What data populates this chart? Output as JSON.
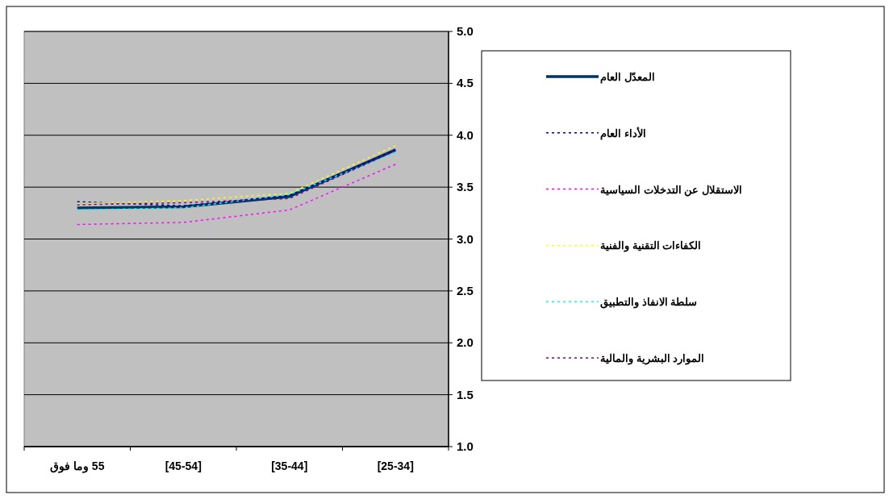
{
  "chart_data": {
    "type": "line",
    "categories": [
      "55 وما فوق",
      "[45-54]",
      "[35-44]",
      "[25-34]"
    ],
    "series": [
      {
        "name": "المعدّل العام",
        "color": "#003366",
        "line_style": "solid",
        "values": [
          3.3,
          3.31,
          3.41,
          3.86
        ]
      },
      {
        "name": "الأداء العام",
        "color": "#000080",
        "line_style": "dotted",
        "values": [
          3.36,
          3.32,
          3.42,
          3.86
        ]
      },
      {
        "name": "الاستقلال عن التدخلات السياسية",
        "color": "#ff00ff",
        "line_style": "dotted",
        "values": [
          3.14,
          3.16,
          3.28,
          3.72
        ]
      },
      {
        "name": "الكفاءات التقنية والفنية",
        "color": "#ffff00",
        "line_style": "dotted",
        "values": [
          3.34,
          3.37,
          3.44,
          3.9
        ]
      },
      {
        "name": "سلطة الانفاذ والتطبيق",
        "color": "#00ffff",
        "line_style": "dotted",
        "values": [
          3.28,
          3.3,
          3.43,
          3.83
        ]
      },
      {
        "name": "الموارد البشرية والمالية",
        "color": "#800080",
        "line_style": "dotted",
        "values": [
          3.33,
          3.35,
          3.39,
          3.85
        ]
      }
    ],
    "ylim": [
      1.0,
      5.0
    ],
    "yticks": [
      {
        "value": 1.0,
        "label": "1.0"
      },
      {
        "value": 1.5,
        "label": "1.5"
      },
      {
        "value": 2.0,
        "label": "2.0"
      },
      {
        "value": 2.5,
        "label": "2.5"
      },
      {
        "value": 3.0,
        "label": "3.0"
      },
      {
        "value": 3.5,
        "label": "3.5"
      },
      {
        "value": 4.0,
        "label": "4.0"
      },
      {
        "value": 4.5,
        "label": "4.5"
      },
      {
        "value": 5.0,
        "label": "5.0"
      }
    ],
    "grid": "y",
    "legend": "right",
    "marker": "none"
  }
}
